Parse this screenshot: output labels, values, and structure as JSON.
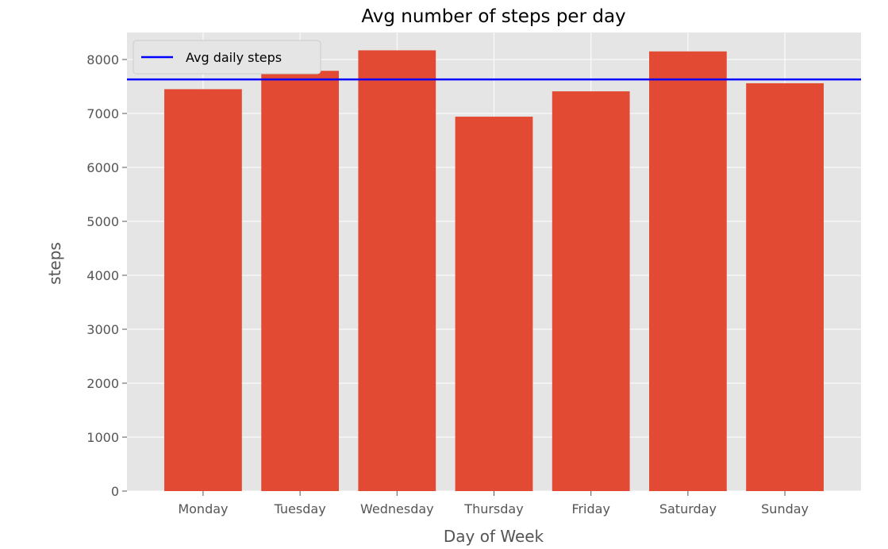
{
  "chart_data": {
    "type": "bar",
    "title": "Avg number of steps per day",
    "xlabel": "Day of Week",
    "ylabel": "steps",
    "categories": [
      "Monday",
      "Tuesday",
      "Wednesday",
      "Thursday",
      "Friday",
      "Saturday",
      "Sunday"
    ],
    "values": [
      7450,
      7790,
      8170,
      6940,
      7410,
      8150,
      7560
    ],
    "ylim": [
      0,
      8500
    ],
    "yticks": [
      0,
      1000,
      2000,
      3000,
      4000,
      5000,
      6000,
      7000,
      8000
    ],
    "grid": true,
    "bar_color": "#E24A33",
    "reference_line": {
      "name": "Avg daily steps",
      "value": 7630,
      "color": "#0000FF"
    },
    "legend": {
      "placement": "top-left",
      "entries": [
        "Avg daily steps"
      ]
    },
    "background_color": "#E5E5E5",
    "grid_color": "#FFFFFF"
  }
}
